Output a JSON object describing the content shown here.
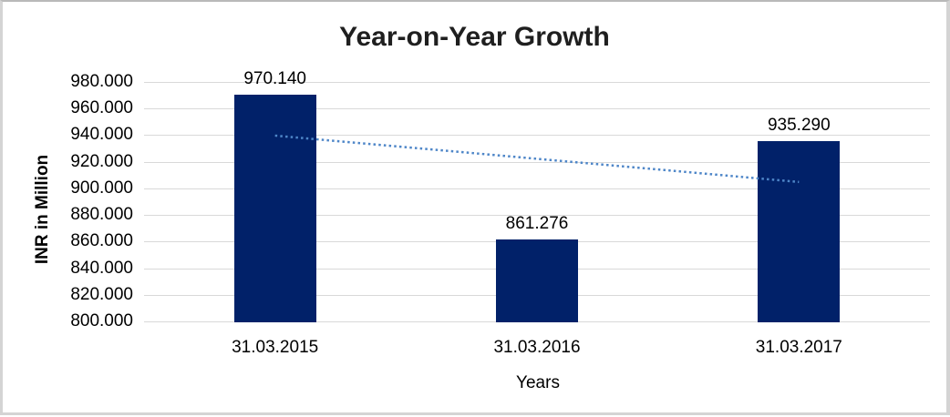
{
  "frame": {
    "background": "#ffffff",
    "border_color": "#d4d4d4"
  },
  "chart_data": {
    "type": "bar",
    "title": "Year-on-Year Growth",
    "xlabel": "Years",
    "ylabel": "INR in Million",
    "categories": [
      "31.03.2015",
      "31.03.2016",
      "31.03.2017"
    ],
    "values": [
      970.14,
      861.276,
      935.29
    ],
    "data_labels": [
      "970.140",
      "861.276",
      "935.290"
    ],
    "ylim": [
      800,
      980
    ],
    "ytick_step": 20,
    "ytick_labels": [
      "980.000",
      "960.000",
      "940.000",
      "920.000",
      "900.000",
      "880.000",
      "860.000",
      "840.000",
      "820.000",
      "800.000"
    ],
    "ytick_values": [
      980,
      960,
      940,
      920,
      900,
      880,
      860,
      840,
      820,
      800
    ],
    "grid": true,
    "legend": "none",
    "bar_color": "#012169",
    "gridline_color": "#d9d9d9",
    "trendline": {
      "type": "linear",
      "style": "dotted",
      "color": "#4e86c8",
      "start_value": 939.66,
      "end_value": 904.81
    }
  }
}
